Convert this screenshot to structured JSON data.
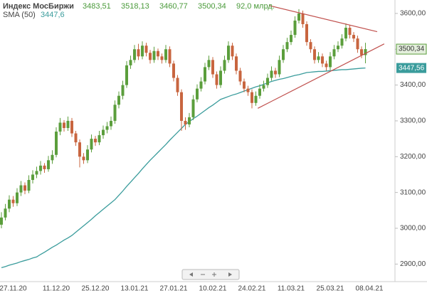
{
  "chart_data": {
    "type": "candlestick",
    "title": "Индекс МосБиржи",
    "ohlc_labels": [
      "3483,51",
      "3518,13",
      "3460,77",
      "3500,34"
    ],
    "volume_label": "92,0 млрд.",
    "sma_label": "SMA (50)",
    "sma_value_label": "3447,6",
    "last_price_label": "3500,34",
    "sma_price_label": "3447,56",
    "categories": [
      null,
      null,
      null,
      "27.11.20",
      null,
      null,
      null,
      null,
      null,
      null,
      null,
      null,
      null,
      null,
      "11.12.20",
      null,
      null,
      null,
      null,
      null,
      null,
      null,
      null,
      null,
      "25.12.20",
      null,
      null,
      null,
      null,
      null,
      null,
      null,
      null,
      null,
      "13.01.21",
      null,
      null,
      null,
      null,
      null,
      null,
      null,
      null,
      null,
      "27.01.21",
      null,
      null,
      null,
      null,
      null,
      null,
      null,
      null,
      null,
      "10.02.21",
      null,
      null,
      null,
      null,
      null,
      null,
      null,
      null,
      null,
      "24.02.21",
      null,
      null,
      null,
      null,
      null,
      null,
      null,
      null,
      null,
      "11.03.21",
      null,
      null,
      null,
      null,
      null,
      null,
      null,
      null,
      null,
      "25.03.21",
      null,
      null,
      null,
      null,
      null,
      null,
      null,
      null,
      null,
      "08.04.21"
    ],
    "up_color": "#5b9e3c",
    "down_color": "#c8653f",
    "open": [
      3010,
      3030,
      3055,
      3080,
      3070,
      3100,
      3120,
      3105,
      3135,
      3150,
      3160,
      3175,
      3165,
      3190,
      3205,
      3270,
      3295,
      3280,
      3300,
      3265,
      3240,
      3200,
      3190,
      3220,
      3250,
      3240,
      3260,
      3275,
      3285,
      3300,
      3345,
      3370,
      3400,
      3455,
      3470,
      3500,
      3480,
      3510,
      3490,
      3470,
      3495,
      3480,
      3470,
      3500,
      3460,
      3420,
      3380,
      3300,
      3290,
      3310,
      3360,
      3390,
      3410,
      3450,
      3470,
      3430,
      3400,
      3440,
      3470,
      3510,
      3480,
      3440,
      3410,
      3390,
      3380,
      3350,
      3370,
      3390,
      3400,
      3420,
      3440,
      3430,
      3470,
      3500,
      3520,
      3540,
      3580,
      3600,
      3570,
      3520,
      3500,
      3470,
      3480,
      3460,
      3450,
      3480,
      3500,
      3510,
      3530,
      3560,
      3540,
      3530,
      3500,
      3483.51,
      null
    ],
    "high": [
      3045,
      3068,
      3092,
      3090,
      3112,
      3132,
      3128,
      3148,
      3162,
      3172,
      3188,
      3182,
      3202,
      3218,
      3282,
      3308,
      3302,
      3312,
      3308,
      3272,
      3248,
      3210,
      3232,
      3262,
      3258,
      3272,
      3287,
      3297,
      3312,
      3357,
      3382,
      3412,
      3467,
      3482,
      3512,
      3515,
      3522,
      3518,
      3498,
      3507,
      3502,
      3488,
      3512,
      3508,
      3468,
      3428,
      3388,
      3310,
      3322,
      3372,
      3402,
      3422,
      3462,
      3482,
      3478,
      3438,
      3452,
      3482,
      3522,
      3518,
      3488,
      3448,
      3418,
      3398,
      3388,
      3382,
      3402,
      3412,
      3432,
      3452,
      3448,
      3482,
      3512,
      3532,
      3552,
      3592,
      3612,
      3608,
      3578,
      3528,
      3508,
      3492,
      3488,
      3468,
      3492,
      3512,
      3522,
      3542,
      3572,
      3568,
      3548,
      3538,
      3508,
      3518.13,
      null
    ],
    "low": [
      3000,
      3022,
      3045,
      3060,
      3062,
      3090,
      3095,
      3098,
      3125,
      3140,
      3150,
      3155,
      3158,
      3180,
      3198,
      3260,
      3270,
      3272,
      3255,
      3230,
      3170,
      3180,
      3182,
      3212,
      3230,
      3232,
      3250,
      3265,
      3275,
      3292,
      3335,
      3360,
      3392,
      3445,
      3462,
      3470,
      3472,
      3480,
      3460,
      3462,
      3470,
      3460,
      3462,
      3450,
      3410,
      3370,
      3272,
      3275,
      3282,
      3302,
      3352,
      3382,
      3402,
      3442,
      3420,
      3390,
      3392,
      3432,
      3462,
      3470,
      3430,
      3400,
      3380,
      3370,
      3335,
      3342,
      3362,
      3382,
      3392,
      3412,
      3420,
      3422,
      3462,
      3492,
      3512,
      3532,
      3572,
      3560,
      3510,
      3490,
      3460,
      3462,
      3450,
      3440,
      3442,
      3472,
      3492,
      3502,
      3522,
      3530,
      3520,
      3490,
      3475,
      3460.77,
      null
    ],
    "close": [
      3030,
      3055,
      3080,
      3070,
      3100,
      3120,
      3105,
      3135,
      3150,
      3160,
      3175,
      3165,
      3190,
      3205,
      3270,
      3295,
      3280,
      3300,
      3265,
      3240,
      3200,
      3190,
      3220,
      3250,
      3240,
      3260,
      3275,
      3285,
      3300,
      3345,
      3370,
      3400,
      3455,
      3470,
      3500,
      3480,
      3510,
      3490,
      3470,
      3495,
      3480,
      3470,
      3500,
      3460,
      3420,
      3380,
      3300,
      3290,
      3310,
      3360,
      3390,
      3410,
      3450,
      3470,
      3430,
      3400,
      3440,
      3470,
      3510,
      3480,
      3440,
      3410,
      3390,
      3380,
      3350,
      3370,
      3390,
      3400,
      3420,
      3440,
      3430,
      3470,
      3500,
      3520,
      3540,
      3580,
      3600,
      3570,
      3520,
      3500,
      3470,
      3480,
      3460,
      3450,
      3480,
      3500,
      3510,
      3530,
      3560,
      3540,
      3530,
      3500,
      3483.51,
      3500.34,
      null
    ],
    "sma": {
      "color": "#3a9c9c",
      "values": [
        2890,
        2893,
        2897,
        2900,
        2903,
        2907,
        2910,
        2913,
        2917,
        2920,
        2927,
        2933,
        2940,
        2947,
        2953,
        2960,
        2967,
        2973,
        2980,
        2989,
        2998,
        3007,
        3016,
        3025,
        3035,
        3044,
        3053,
        3062,
        3071,
        3080,
        3092,
        3104,
        3117,
        3129,
        3141,
        3153,
        3166,
        3178,
        3190,
        3201,
        3212,
        3223,
        3234,
        3246,
        3257,
        3268,
        3279,
        3290,
        3298,
        3306,
        3313,
        3321,
        3329,
        3337,
        3344,
        3352,
        3360,
        3364,
        3368,
        3372,
        3375,
        3379,
        3383,
        3387,
        3391,
        3395,
        3398,
        3402,
        3406,
        3410,
        3413,
        3416,
        3418,
        3421,
        3424,
        3427,
        3429,
        3432,
        3435,
        3436,
        3437,
        3438,
        3438,
        3439,
        3440,
        3441,
        3442,
        3443,
        3443,
        3444,
        3445,
        3446,
        3447,
        3447.6,
        null
      ]
    },
    "trendlines": [
      {
        "x": [
          68.4,
          96
        ],
        "y": [
          3622,
          3549
        ],
        "color": "#c0504d"
      },
      {
        "x": [
          65.5,
          97.8
        ],
        "y": [
          3335,
          3515
        ],
        "color": "#c0504d"
      }
    ],
    "ylim": [
      2857,
      3637.5
    ],
    "yticks": [
      {
        "value": 2900,
        "label": "2900,00"
      },
      {
        "value": 3000,
        "label": "3000,00"
      },
      {
        "value": 3100,
        "label": "3100,00"
      },
      {
        "value": 3200,
        "label": "3200,00"
      },
      {
        "value": 3300,
        "label": "3300,00"
      },
      {
        "value": 3400,
        "label": "3400,00"
      },
      {
        "value": 3500,
        "label": "3500,00"
      },
      {
        "value": 3600,
        "label": "3600,00"
      }
    ],
    "grid": false
  }
}
